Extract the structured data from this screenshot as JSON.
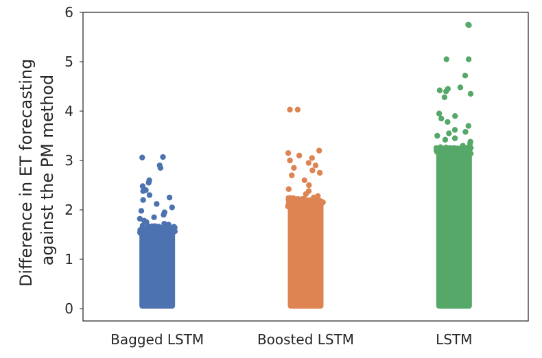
{
  "chart_data": {
    "type": "strip",
    "title": "",
    "xlabel": "",
    "ylabel_lines": [
      "Difference in ET forecasting",
      "against the PM method"
    ],
    "ylim": [
      -0.25,
      6.0
    ],
    "yticks": [
      0,
      1,
      2,
      3,
      4,
      5,
      6
    ],
    "ytick_labels": [
      "0",
      "1",
      "2",
      "3",
      "4",
      "5",
      "6"
    ],
    "categories": [
      "Bagged LSTM",
      "Boosted LSTM",
      "LSTM"
    ],
    "grid": false,
    "series": [
      {
        "name": "Bagged LSTM",
        "color": "#4C72B0",
        "dense_range": [
          0,
          1.65
        ],
        "outliers": [
          2.85,
          2.9,
          3.07,
          3.06,
          2.6,
          2.55,
          2.48,
          2.4,
          2.38,
          2.3,
          2.25,
          2.2,
          2.12,
          2.05,
          1.98,
          1.95,
          1.9,
          1.85,
          1.82,
          1.78,
          1.75,
          1.72,
          1.7
        ]
      },
      {
        "name": "Boosted LSTM",
        "color": "#DD8452",
        "dense_range": [
          0,
          2.2
        ],
        "outliers": [
          4.03,
          4.03,
          3.2,
          3.15,
          3.1,
          3.05,
          3.0,
          2.95,
          2.9,
          2.85,
          2.8,
          2.75,
          2.7,
          2.6,
          2.5,
          2.42,
          2.38,
          2.32,
          2.28,
          2.25
        ]
      },
      {
        "name": "LSTM",
        "color": "#55A868",
        "dense_range": [
          0,
          3.25
        ],
        "outliers": [
          5.75,
          5.74,
          5.05,
          5.05,
          4.72,
          4.48,
          4.45,
          4.42,
          4.4,
          4.35,
          4.28,
          3.95,
          3.9,
          3.85,
          3.78,
          3.7,
          3.62,
          3.58,
          3.55,
          3.5,
          3.45,
          3.42,
          3.38,
          3.35,
          3.3
        ]
      }
    ]
  }
}
